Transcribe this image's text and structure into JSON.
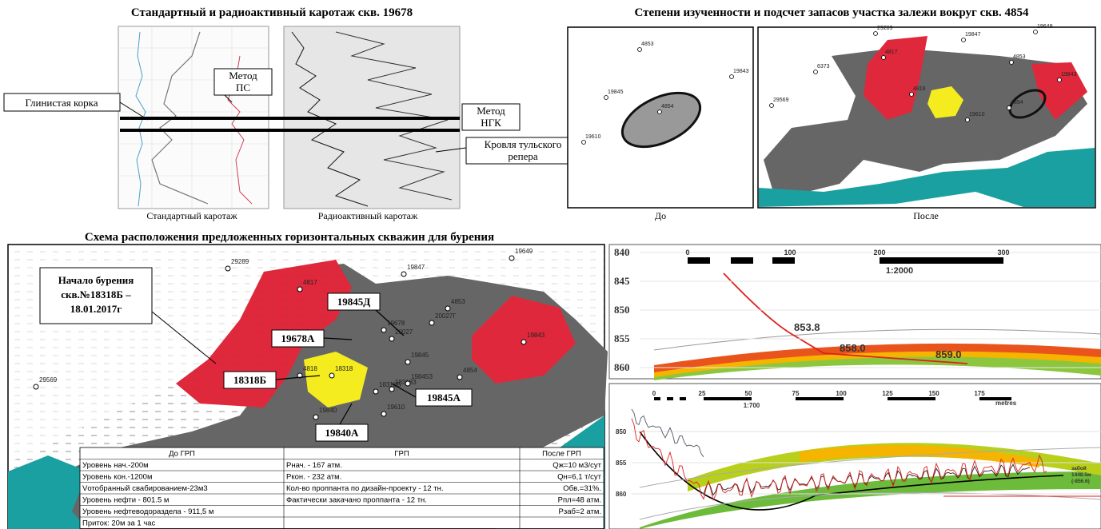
{
  "top_left": {
    "title": "Стандартный и радиоактивный каротаж скв. 19678",
    "captions": [
      "Стандартный каротаж",
      "Радиоактивный каротаж"
    ],
    "callouts": {
      "clay": "Глинистая корка",
      "ps": [
        "Метод",
        "ПС"
      ],
      "ngk": [
        "Метод",
        "НГК"
      ],
      "tula": [
        "Кровля тульского",
        "репера"
      ]
    }
  },
  "top_right": {
    "title": "Степени изученности и подсчет запасов участка залежи вокруг скв. 4854",
    "captions": [
      "До",
      "После"
    ],
    "wells_before": [
      "4853",
      "19843",
      "19845",
      "4854",
      "19610"
    ],
    "wells_after": [
      "29289",
      "19847",
      "19649",
      "6373",
      "29569",
      "4817",
      "4853",
      "19843",
      "4818",
      "4854",
      "19610"
    ]
  },
  "bottom": {
    "title": "Схема расположения предложенных горизонтальных скважин для бурения",
    "start_note": [
      "Начало бурения",
      "скв.№18318Б –",
      "18.01.2017г"
    ],
    "proposed": [
      "19845Д",
      "19678А",
      "18318Б",
      "19845А",
      "19840А"
    ],
    "wells": [
      "29289",
      "19847",
      "19649",
      "4817",
      "6373",
      "4853",
      "19678",
      "20027Г",
      "20027",
      "19845",
      "19843",
      "4854",
      "4818",
      "18318",
      "18318Б",
      "183183",
      "19845З",
      "19610",
      "19840",
      "29569"
    ],
    "table": {
      "header": [
        "До ГРП",
        "ГРП",
        "После ГРП"
      ],
      "rows": [
        {
          "before": "Уровень нач.-200м",
          "grp": "Рнач. - 167 атм.",
          "after": "Qж=10 м3/сут"
        },
        {
          "before": "Уровень кон.-1200м",
          "grp": "Ркон. - 232 атм.",
          "after": "Qн=6,1 т/сут"
        },
        {
          "before": "Vотобранный свабированием-23м3",
          "grp": "Кол-во проппанта по дизайн-проекту - 12 тн.",
          "after": "Обв.=31%."
        },
        {
          "before": "Уровень нефти - 801.5 м",
          "grp": "Фактически закачано проппанта - 12 тн.",
          "after": "Рпл=48 атм."
        },
        {
          "before": "Уровень нефтеводораздела - 911,5 м",
          "after": "Рзаб=2 атм."
        },
        {
          "before": "Приток: 20м за 1 час"
        }
      ]
    }
  },
  "profile_top": {
    "depth_ticks": [
      "840",
      "845",
      "850",
      "855",
      "860"
    ],
    "scale_ticks": [
      "0",
      "100",
      "200",
      "300"
    ],
    "scale": "1:2000",
    "depth_marks": [
      "853.8",
      "858.0",
      "859.0"
    ]
  },
  "profile_bottom": {
    "scale_ticks": [
      "0",
      "25",
      "50",
      "75",
      "100",
      "125",
      "150",
      "175"
    ],
    "unit": "metres",
    "scale": "1:700",
    "depth_ticks": [
      "850",
      "855",
      "860"
    ],
    "note": [
      "забой",
      "1448.5м",
      "(-856.6)"
    ]
  }
}
